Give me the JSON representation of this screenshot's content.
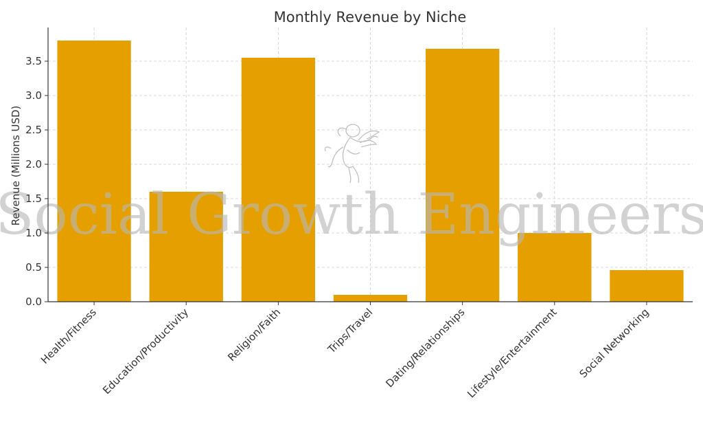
{
  "chart_data": {
    "type": "bar",
    "title": "Monthly Revenue by Niche",
    "xlabel": "",
    "ylabel": "Revenue (Millions USD)",
    "categories": [
      "Health/Fitness",
      "Education/Productivity",
      "Religion/Faith",
      "Trips/Travel",
      "Dating/Relationships",
      "Lifestyle/Entertainment",
      "Social Networking"
    ],
    "values": [
      3.8,
      1.6,
      3.55,
      0.1,
      3.68,
      1.0,
      0.46
    ],
    "ylim": [
      0,
      3.99
    ],
    "yticks": [
      "0.0",
      "0.5",
      "1.0",
      "1.5",
      "2.0",
      "2.5",
      "3.0",
      "3.5"
    ],
    "grid": true,
    "bar_color": "#e5a000",
    "grid_color": "#cccccc",
    "axis_color": "#333333"
  },
  "watermark": {
    "text": "Social Growth Engineers",
    "logo": "cherub-logo",
    "color": "#b8b8b8"
  }
}
